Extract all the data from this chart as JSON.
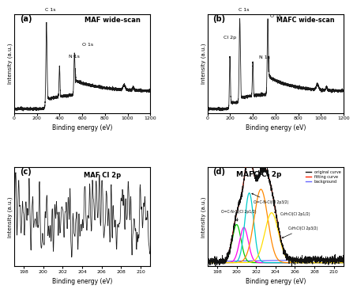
{
  "panel_a": {
    "title": "MAF wide-scan",
    "label": "(a)",
    "xlabel": "Binding energy (eV)",
    "ylabel": "Intensity (a.u.)",
    "xlim": [
      0,
      1200
    ],
    "peaks": [
      {
        "x": 285,
        "label": "C 1s"
      },
      {
        "x": 400,
        "label": "N 1s"
      },
      {
        "x": 532,
        "label": "O 1s"
      }
    ]
  },
  "panel_b": {
    "title": "MAFC wide-scan",
    "label": "(b)",
    "xlabel": "Binding energy (eV)",
    "ylabel": "Intensity (a.u.)",
    "xlim": [
      0,
      1200
    ],
    "peaks": [
      {
        "x": 285,
        "label": "C 1s"
      },
      {
        "x": 198,
        "label": "Cl 2p"
      },
      {
        "x": 400,
        "label": "N 1s"
      },
      {
        "x": 532,
        "label": "O 1s"
      }
    ]
  },
  "panel_c": {
    "title": "MAF Cl 2p",
    "label": "(c)",
    "xlabel": "Binding energy (eV)",
    "ylabel": "Intensity (a.u.)",
    "xlim": [
      197,
      211
    ]
  },
  "panel_d": {
    "title": "MAFC Cl 2p",
    "label": "(d)",
    "xlabel": "Binding energy (eV)",
    "ylabel": "Intensity (a.u.)",
    "xlim": [
      197,
      211
    ],
    "legend": [
      "original curve",
      "fitting curve",
      "background"
    ],
    "legend_colors": [
      "#111111",
      "#ff2200",
      "#6666ff"
    ]
  },
  "background_color": "#ffffff",
  "line_color": "#1a1a1a"
}
